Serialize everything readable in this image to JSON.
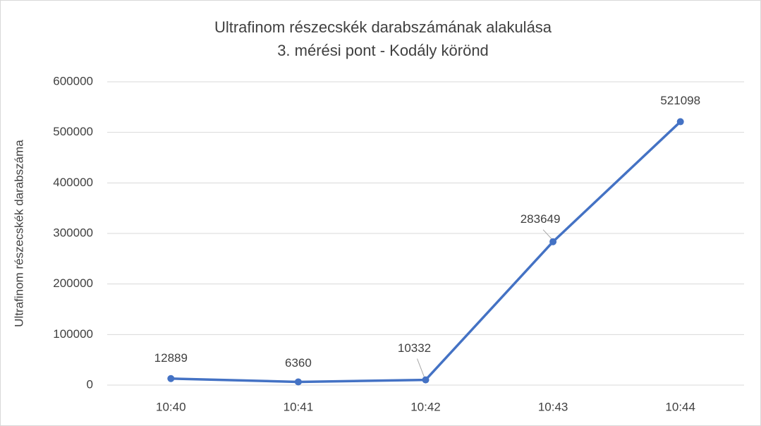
{
  "chart_data": {
    "type": "line",
    "title": "Ultrafinom részecskék darabszámának alakulása",
    "subtitle": "3. mérési pont - Kodály körönd",
    "y_label": "Ultrafinom részecskék darabszáma",
    "categories": [
      "10:40",
      "10:41",
      "10:42",
      "10:43",
      "10:44"
    ],
    "values": [
      12889,
      6360,
      10332,
      283649,
      521098
    ],
    "color": "#4472c4",
    "ylim": [
      0,
      600000
    ],
    "yticks": [
      0,
      100000,
      200000,
      300000,
      400000,
      500000,
      600000
    ],
    "grid": true
  }
}
